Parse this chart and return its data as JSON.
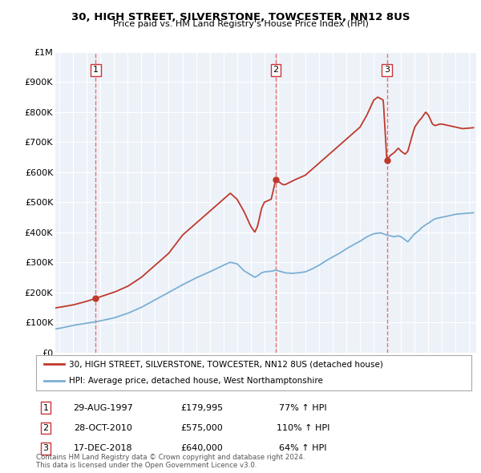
{
  "title1": "30, HIGH STREET, SILVERSTONE, TOWCESTER, NN12 8US",
  "title2": "Price paid vs. HM Land Registry's House Price Index (HPI)",
  "legend_line1": "30, HIGH STREET, SILVERSTONE, TOWCESTER, NN12 8US (detached house)",
  "legend_line2": "HPI: Average price, detached house, West Northamptonshire",
  "footer": "Contains HM Land Registry data © Crown copyright and database right 2024.\nThis data is licensed under the Open Government Licence v3.0.",
  "transactions": [
    {
      "num": 1,
      "date": "29-AUG-1997",
      "price": 179995,
      "pct": "77%",
      "dir": "↑"
    },
    {
      "num": 2,
      "date": "28-OCT-2010",
      "price": 575000,
      "pct": "110%",
      "dir": "↑"
    },
    {
      "num": 3,
      "date": "17-DEC-2018",
      "price": 640000,
      "pct": "64%",
      "dir": "↑"
    }
  ],
  "transaction_years": [
    1997.66,
    2010.83,
    2018.96
  ],
  "transaction_prices": [
    179995,
    575000,
    640000
  ],
  "hpi_color": "#7bafd4",
  "price_color": "#c0392b",
  "dashed_color": "#e87070",
  "background_plot": "#edf2f9",
  "background_fig": "#ffffff",
  "grid_color": "#ffffff",
  "ylim": [
    0,
    1000000
  ],
  "xlim_start": 1994.7,
  "xlim_end": 2025.5,
  "label_color": "#333333"
}
